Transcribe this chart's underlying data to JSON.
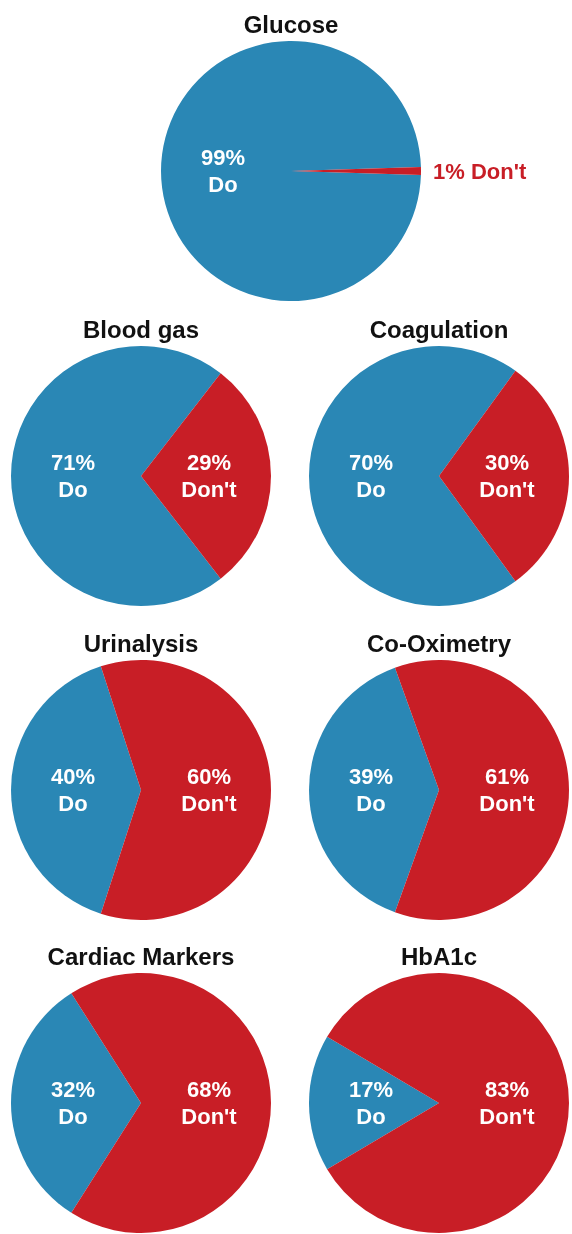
{
  "chart_data": [
    {
      "type": "pie",
      "title": "Glucose",
      "categories": [
        "Do",
        "Don't"
      ],
      "values": [
        99,
        1
      ],
      "value_labels": [
        "99%",
        "1%"
      ],
      "colors": [
        "#2a87b5",
        "#c81e26"
      ]
    },
    {
      "type": "pie",
      "title": "Blood gas",
      "categories": [
        "Do",
        "Don't"
      ],
      "values": [
        71,
        29
      ],
      "value_labels": [
        "71%",
        "29%"
      ],
      "colors": [
        "#2a87b5",
        "#c81e26"
      ]
    },
    {
      "type": "pie",
      "title": "Coagulation",
      "categories": [
        "Do",
        "Don't"
      ],
      "values": [
        70,
        30
      ],
      "value_labels": [
        "70%",
        "30%"
      ],
      "colors": [
        "#2a87b5",
        "#c81e26"
      ]
    },
    {
      "type": "pie",
      "title": "Urinalysis",
      "categories": [
        "Do",
        "Don't"
      ],
      "values": [
        40,
        60
      ],
      "value_labels": [
        "40%",
        "60%"
      ],
      "colors": [
        "#2a87b5",
        "#c81e26"
      ]
    },
    {
      "type": "pie",
      "title": "Co-Oximetry",
      "categories": [
        "Do",
        "Don't"
      ],
      "values": [
        39,
        61
      ],
      "value_labels": [
        "39%",
        "61%"
      ],
      "colors": [
        "#2a87b5",
        "#c81e26"
      ]
    },
    {
      "type": "pie",
      "title": "Cardiac Markers",
      "categories": [
        "Do",
        "Don't"
      ],
      "values": [
        32,
        68
      ],
      "value_labels": [
        "32%",
        "68%"
      ],
      "colors": [
        "#2a87b5",
        "#c81e26"
      ]
    },
    {
      "type": "pie",
      "title": "HbA1c",
      "categories": [
        "Do",
        "Don't"
      ],
      "values": [
        17,
        83
      ],
      "value_labels": [
        "17%",
        "83%"
      ],
      "colors": [
        "#2a87b5",
        "#c81e26"
      ]
    }
  ]
}
